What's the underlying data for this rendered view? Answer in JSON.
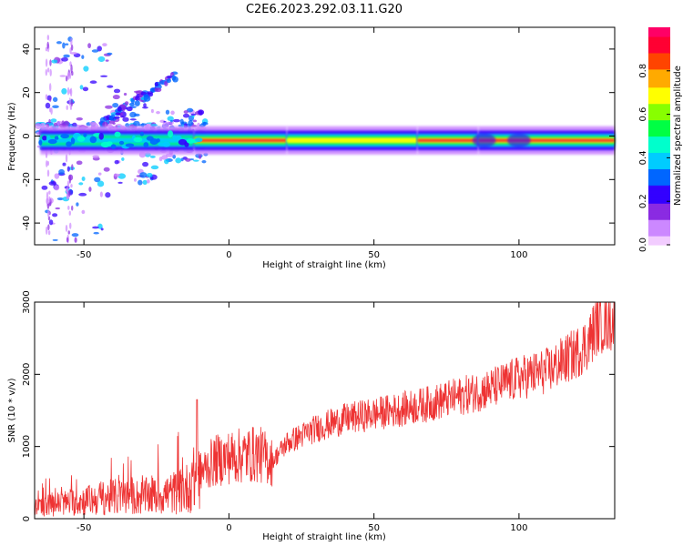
{
  "title": "C2E6.2023.292.03.11.G20",
  "chart_data": [
    {
      "type": "heatmap",
      "xlabel": "Height of straight line (km)",
      "ylabel": "Frequency (Hz)",
      "xlim": [
        -67,
        133
      ],
      "ylim": [
        -50,
        50
      ],
      "xticks": [
        -50,
        0,
        50,
        100
      ],
      "yticks": [
        -40,
        -20,
        0,
        20,
        40
      ],
      "colorbar": {
        "label": "Normalized spectral amplitude",
        "range": [
          0,
          1
        ],
        "ticks": [
          "0.0",
          "0.2",
          "0.4",
          "0.6",
          "0.8"
        ],
        "colors": [
          "#f2ccff",
          "#cc88ff",
          "#8a2be2",
          "#3300ff",
          "#0066ff",
          "#00ccff",
          "#00ffcc",
          "#00ff44",
          "#88ff00",
          "#ffff00",
          "#ffaa00",
          "#ff4400",
          "#ff0033",
          "#ff0066"
        ]
      },
      "band_center_hz": -2,
      "band_segments": [
        {
          "from": -65,
          "to": -12,
          "level": 0.42
        },
        {
          "from": -12,
          "to": 20,
          "level": 0.9
        },
        {
          "from": 20,
          "to": 65,
          "level": 0.7
        },
        {
          "from": 65,
          "to": 86,
          "level": 0.95
        },
        {
          "from": 86,
          "to": 133,
          "level": 0.95
        }
      ]
    },
    {
      "type": "line",
      "xlabel": "Height of straight line (km)",
      "ylabel": "SNR (10 * v/v)",
      "xlim": [
        -67,
        133
      ],
      "ylim": [
        0,
        3000
      ],
      "xticks": [
        -50,
        0,
        50,
        100
      ],
      "yticks": [
        0,
        1000,
        2000,
        3000
      ],
      "series": [
        {
          "name": "SNR",
          "color": "#ee3333",
          "x": [
            -67,
            -60,
            -50,
            -40,
            -30,
            -20,
            -15,
            -11,
            -5,
            0,
            10,
            15,
            20,
            30,
            40,
            50,
            60,
            70,
            80,
            90,
            100,
            110,
            120,
            124,
            127,
            133
          ],
          "y": [
            150,
            200,
            250,
            300,
            300,
            350,
            400,
            600,
            800,
            850,
            900,
            800,
            1050,
            1250,
            1380,
            1450,
            1520,
            1600,
            1700,
            1800,
            1950,
            2050,
            2300,
            2450,
            2700,
            2750
          ]
        }
      ]
    }
  ]
}
